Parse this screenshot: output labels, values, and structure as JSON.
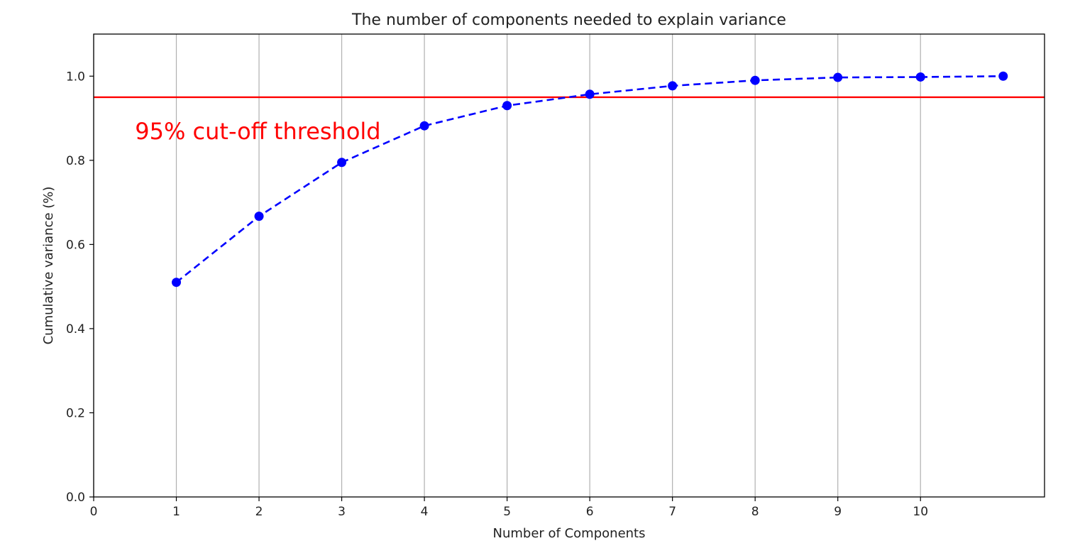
{
  "chart_data": {
    "type": "line",
    "title": "The number of components needed to explain variance",
    "xlabel": "Number of Components",
    "ylabel": "Cumulative variance (%)",
    "xlim": [
      0,
      11.5
    ],
    "ylim": [
      0,
      1.1
    ],
    "xticks": [
      0,
      1,
      2,
      3,
      4,
      5,
      6,
      7,
      8,
      9,
      10
    ],
    "xtick_labels": [
      "0",
      "1",
      "2",
      "3",
      "4",
      "5",
      "6",
      "7",
      "8",
      "9",
      "10"
    ],
    "yticks": [
      0.0,
      0.2,
      0.4,
      0.6,
      0.8,
      1.0
    ],
    "ytick_labels": [
      "0.0",
      "0.2",
      "0.4",
      "0.6",
      "0.8",
      "1.0"
    ],
    "grid": "vertical",
    "x": [
      1,
      2,
      3,
      4,
      5,
      6,
      7,
      8,
      9,
      10,
      11
    ],
    "y": [
      0.51,
      0.667,
      0.795,
      0.882,
      0.93,
      0.957,
      0.977,
      0.99,
      0.997,
      0.998,
      1.0
    ],
    "line_color": "#0000ff",
    "line_style": "dashed",
    "marker": "circle",
    "threshold": {
      "value": 0.95,
      "label": "95% cut-off threshold",
      "label_x": 0.5,
      "label_y": 0.85,
      "color": "#ff0000"
    }
  }
}
